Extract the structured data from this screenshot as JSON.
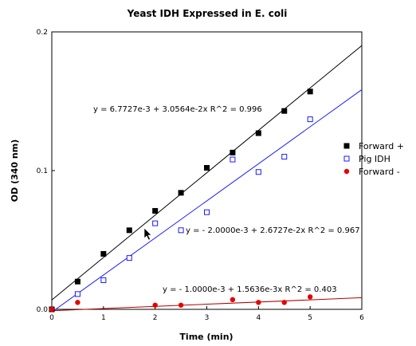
{
  "chart_data": {
    "type": "scatter",
    "title": "Yeast IDH Expressed in E. coli",
    "xlabel": "Time (min)",
    "ylabel": "OD (340 nm)",
    "xlim": [
      0,
      6
    ],
    "ylim": [
      0,
      0.2
    ],
    "x_ticks": [
      0,
      1,
      2,
      3,
      4,
      5,
      6
    ],
    "y_ticks": [
      0.0,
      0.1,
      0.2
    ],
    "x_tick_labels": [
      "0",
      "1",
      "2",
      "3",
      "4",
      "5",
      "6"
    ],
    "y_tick_labels": [
      "0.0",
      "0.1",
      "0.2"
    ],
    "grid": false,
    "legend_position": "right",
    "series": [
      {
        "name": "Forward +",
        "marker": "filled-square",
        "color": "#000000",
        "line_color": "#000000",
        "x": [
          0,
          0.5,
          1,
          1.5,
          2,
          2.5,
          3,
          3.5,
          4,
          4.5,
          5
        ],
        "y": [
          0,
          0.02,
          0.04,
          0.057,
          0.071,
          0.084,
          0.102,
          0.113,
          0.127,
          0.143,
          0.157
        ],
        "fit": {
          "intercept": 0.0067727,
          "slope": 0.030564
        },
        "equation": "y = 6.7727e-3 + 3.0564e-2x  R^2 = 0.996"
      },
      {
        "name": "Pig IDH",
        "marker": "open-square",
        "color": "#1a1aff",
        "line_color": "#1a1aff",
        "x": [
          0.5,
          1,
          1.5,
          2,
          2.5,
          3,
          3.5,
          4,
          4.5,
          5
        ],
        "y": [
          0.011,
          0.021,
          0.037,
          0.062,
          0.057,
          0.07,
          0.108,
          0.099,
          0.11,
          0.137
        ],
        "fit": {
          "intercept": -0.002,
          "slope": 0.026727
        },
        "equation": "y = - 2.0000e-3 + 2.6727e-2x  R^2 = 0.967"
      },
      {
        "name": "Forward -",
        "marker": "filled-circle",
        "color": "#e60000",
        "line_color": "#b00000",
        "x": [
          0,
          0.5,
          2,
          2.5,
          3.5,
          4,
          4.5,
          5
        ],
        "y": [
          0,
          0.005,
          0.003,
          0.003,
          0.007,
          0.005,
          0.005,
          0.009
        ],
        "fit": {
          "intercept": -0.001,
          "slope": 0.0015636
        },
        "equation": "y = - 1.0000e-3 + 1.5636e-3x  R^2 = 0.403"
      }
    ]
  }
}
